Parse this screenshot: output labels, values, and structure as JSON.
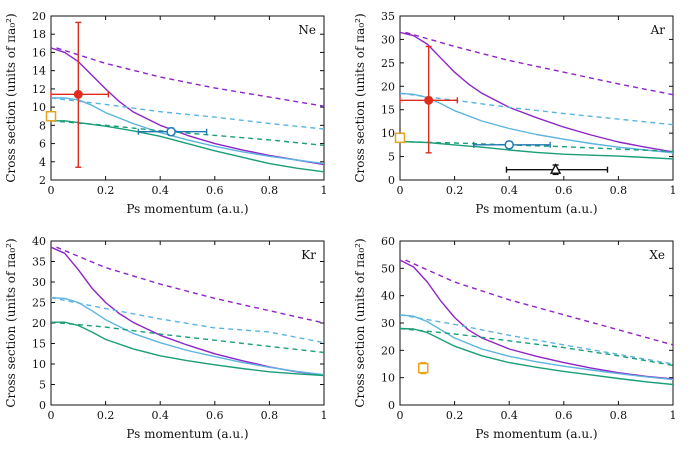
{
  "colors": {
    "purple": "#8e24c8",
    "lightblue": "#5cb4e0",
    "green": "#1a9e78",
    "red": "#e02c1e",
    "blue": "#1f78b4",
    "orange": "#e8a21c",
    "black": "#111111"
  },
  "chart_data": [
    {
      "type": "line",
      "panel_label": "Ne",
      "xlabel": "Ps momentum (a.u.)",
      "ylabel": "Cross section (units of πa₀²)",
      "xlim": [
        0,
        1
      ],
      "ylim": [
        2,
        20
      ],
      "xticks": [
        0,
        0.2,
        0.4,
        0.6,
        0.8,
        1
      ],
      "yticks": [
        2,
        4,
        6,
        8,
        10,
        12,
        14,
        16,
        18,
        20
      ],
      "series": [
        {
          "color": "purple",
          "dash": true,
          "x": [
            0.02,
            0.2,
            0.4,
            0.6,
            0.8,
            1.0
          ],
          "y": [
            16.5,
            14.8,
            13.3,
            12.1,
            11.1,
            10.1
          ]
        },
        {
          "color": "purple",
          "dash": false,
          "x": [
            0.0,
            0.05,
            0.1,
            0.15,
            0.2,
            0.25,
            0.3,
            0.4,
            0.5,
            0.6,
            0.7,
            0.8,
            0.9,
            1.0
          ],
          "y": [
            16.5,
            16.0,
            15.0,
            13.5,
            12.0,
            10.6,
            9.5,
            8.0,
            6.9,
            6.0,
            5.3,
            4.7,
            4.2,
            3.7
          ]
        },
        {
          "color": "lightblue",
          "dash": true,
          "x": [
            0.0,
            0.2,
            0.4,
            0.6,
            0.8,
            1.0
          ],
          "y": [
            11.0,
            10.3,
            9.5,
            8.9,
            8.2,
            7.6
          ]
        },
        {
          "color": "lightblue",
          "dash": false,
          "x": [
            0.0,
            0.05,
            0.1,
            0.15,
            0.2,
            0.3,
            0.4,
            0.5,
            0.6,
            0.7,
            0.8,
            0.9,
            1.0
          ],
          "y": [
            11.0,
            11.0,
            10.8,
            10.2,
            9.4,
            8.2,
            7.2,
            6.4,
            5.7,
            5.1,
            4.6,
            4.2,
            3.8
          ]
        },
        {
          "color": "green",
          "dash": true,
          "x": [
            0.0,
            0.2,
            0.4,
            0.6,
            0.8,
            1.0
          ],
          "y": [
            8.5,
            8.0,
            7.4,
            6.9,
            6.4,
            5.8
          ]
        },
        {
          "color": "green",
          "dash": false,
          "x": [
            0.0,
            0.05,
            0.1,
            0.2,
            0.3,
            0.4,
            0.5,
            0.6,
            0.7,
            0.8,
            0.9,
            1.0
          ],
          "y": [
            8.5,
            8.5,
            8.3,
            7.9,
            7.4,
            6.8,
            6.0,
            5.2,
            4.5,
            3.8,
            3.3,
            2.9
          ]
        }
      ],
      "points": [
        {
          "color": "red",
          "marker": "dot",
          "x": 0.1,
          "y": 11.4,
          "xerr": [
            0.0,
            0.21
          ],
          "yerr": [
            3.4,
            19.3
          ]
        },
        {
          "color": "blue",
          "marker": "circle",
          "x": 0.44,
          "y": 7.3,
          "xerr": [
            0.32,
            0.57
          ],
          "yerr": [
            6.9,
            7.7
          ]
        },
        {
          "color": "orange",
          "marker": "square",
          "x": 0.0,
          "y": 9.0
        }
      ]
    },
    {
      "type": "line",
      "panel_label": "Ar",
      "xlabel": "Ps momentum (a.u.)",
      "ylabel": "Cross section (units of πa₀²)",
      "xlim": [
        0,
        1
      ],
      "ylim": [
        0,
        35
      ],
      "xticks": [
        0,
        0.2,
        0.4,
        0.6,
        0.8,
        1
      ],
      "yticks": [
        0,
        5,
        10,
        15,
        20,
        25,
        30,
        35
      ],
      "series": [
        {
          "color": "purple",
          "dash": true,
          "x": [
            0.02,
            0.2,
            0.4,
            0.6,
            0.8,
            1.0
          ],
          "y": [
            31.5,
            28.5,
            25.5,
            23.0,
            20.5,
            18.2
          ]
        },
        {
          "color": "purple",
          "dash": false,
          "x": [
            0.0,
            0.05,
            0.1,
            0.15,
            0.2,
            0.25,
            0.3,
            0.4,
            0.5,
            0.6,
            0.7,
            0.8,
            0.9,
            1.0
          ],
          "y": [
            31.5,
            30.8,
            29.0,
            26.0,
            23.0,
            20.5,
            18.5,
            15.5,
            13.3,
            11.3,
            9.6,
            8.1,
            7.0,
            6.0
          ]
        },
        {
          "color": "lightblue",
          "dash": true,
          "x": [
            0.0,
            0.2,
            0.4,
            0.6,
            0.8,
            1.0
          ],
          "y": [
            18.5,
            17.0,
            15.5,
            14.2,
            13.0,
            11.8
          ]
        },
        {
          "color": "lightblue",
          "dash": false,
          "x": [
            0.0,
            0.05,
            0.1,
            0.15,
            0.2,
            0.3,
            0.4,
            0.5,
            0.6,
            0.7,
            0.8,
            0.9,
            1.0
          ],
          "y": [
            18.5,
            18.3,
            17.6,
            16.3,
            14.8,
            12.6,
            11.0,
            9.7,
            8.7,
            7.8,
            7.0,
            6.4,
            5.8
          ]
        },
        {
          "color": "green",
          "dash": true,
          "x": [
            0.0,
            0.2,
            0.4,
            0.6,
            0.8,
            1.0
          ],
          "y": [
            8.2,
            7.9,
            7.5,
            7.1,
            6.6,
            6.1
          ]
        },
        {
          "color": "green",
          "dash": false,
          "x": [
            0.0,
            0.1,
            0.2,
            0.3,
            0.4,
            0.5,
            0.6,
            0.7,
            0.8,
            0.9,
            1.0
          ],
          "y": [
            8.2,
            8.0,
            7.5,
            7.0,
            6.4,
            5.9,
            5.5,
            5.3,
            5.1,
            4.8,
            4.5
          ]
        }
      ],
      "points": [
        {
          "color": "red",
          "marker": "dot",
          "x": 0.105,
          "y": 17.0,
          "xerr": [
            0.0,
            0.21
          ],
          "yerr": [
            5.8,
            28.5
          ]
        },
        {
          "color": "blue",
          "marker": "circle",
          "x": 0.4,
          "y": 7.5,
          "xerr": [
            0.27,
            0.55
          ],
          "yerr": [
            6.8,
            8.2
          ]
        },
        {
          "color": "black",
          "marker": "triangle",
          "x": 0.57,
          "y": 2.2,
          "xerr": [
            0.39,
            0.76
          ],
          "yerr": [
            1.2,
            3.2
          ]
        },
        {
          "color": "orange",
          "marker": "square",
          "x": 0.0,
          "y": 9.0
        }
      ]
    },
    {
      "type": "line",
      "panel_label": "Kr",
      "xlabel": "Ps momentum (a.u.)",
      "ylabel": "Cross section (units of πa₀²)",
      "xlim": [
        0,
        1
      ],
      "ylim": [
        0,
        40
      ],
      "xticks": [
        0,
        0.2,
        0.4,
        0.6,
        0.8,
        1
      ],
      "yticks": [
        0,
        5,
        10,
        15,
        20,
        25,
        30,
        35,
        40
      ],
      "series": [
        {
          "color": "purple",
          "dash": true,
          "x": [
            0.02,
            0.2,
            0.4,
            0.6,
            0.8,
            1.0
          ],
          "y": [
            38.5,
            33.5,
            29.5,
            26.0,
            23.0,
            20.0
          ]
        },
        {
          "color": "purple",
          "dash": false,
          "x": [
            0.0,
            0.05,
            0.1,
            0.15,
            0.2,
            0.25,
            0.3,
            0.4,
            0.5,
            0.6,
            0.7,
            0.8,
            0.9,
            1.0
          ],
          "y": [
            38.5,
            37.0,
            33.0,
            28.5,
            25.0,
            22.3,
            20.2,
            17.0,
            14.6,
            12.5,
            10.8,
            9.3,
            8.1,
            7.3
          ]
        },
        {
          "color": "lightblue",
          "dash": true,
          "x": [
            0.0,
            0.2,
            0.4,
            0.6,
            0.8,
            1.0
          ],
          "y": [
            26.2,
            23.5,
            21.0,
            18.8,
            17.8,
            15.2
          ]
        },
        {
          "color": "lightblue",
          "dash": false,
          "x": [
            0.0,
            0.05,
            0.1,
            0.15,
            0.2,
            0.3,
            0.4,
            0.5,
            0.6,
            0.7,
            0.8,
            0.9,
            1.0
          ],
          "y": [
            26.2,
            26.0,
            25.0,
            23.0,
            20.8,
            17.5,
            15.2,
            13.3,
            11.8,
            10.4,
            9.2,
            8.2,
            7.4
          ]
        },
        {
          "color": "green",
          "dash": true,
          "x": [
            0.0,
            0.2,
            0.4,
            0.6,
            0.8,
            1.0
          ],
          "y": [
            20.2,
            19.0,
            17.3,
            15.8,
            14.3,
            12.8
          ]
        },
        {
          "color": "green",
          "dash": false,
          "x": [
            0.0,
            0.05,
            0.1,
            0.15,
            0.2,
            0.3,
            0.4,
            0.5,
            0.6,
            0.7,
            0.8,
            0.9,
            1.0
          ],
          "y": [
            20.2,
            20.2,
            19.4,
            17.8,
            16.0,
            13.7,
            12.0,
            10.8,
            9.8,
            8.9,
            8.1,
            7.6,
            7.2
          ]
        }
      ],
      "points": []
    },
    {
      "type": "line",
      "panel_label": "Xe",
      "xlabel": "Ps momentum (a.u.)",
      "ylabel": "Cross section (units of πa₀²)",
      "xlim": [
        0,
        1
      ],
      "ylim": [
        0,
        60
      ],
      "xticks": [
        0,
        0.2,
        0.4,
        0.6,
        0.8,
        1
      ],
      "yticks": [
        0,
        10,
        20,
        30,
        40,
        50,
        60
      ],
      "series": [
        {
          "color": "purple",
          "dash": true,
          "x": [
            0.02,
            0.2,
            0.4,
            0.6,
            0.8,
            1.0
          ],
          "y": [
            53.0,
            45.0,
            38.5,
            33.0,
            27.5,
            22.0
          ]
        },
        {
          "color": "purple",
          "dash": false,
          "x": [
            0.0,
            0.05,
            0.1,
            0.15,
            0.2,
            0.25,
            0.3,
            0.4,
            0.5,
            0.6,
            0.7,
            0.8,
            0.9,
            1.0
          ],
          "y": [
            53.0,
            50.5,
            45.0,
            38.0,
            32.0,
            27.5,
            24.5,
            20.5,
            17.8,
            15.5,
            13.5,
            11.8,
            10.5,
            9.5
          ]
        },
        {
          "color": "lightblue",
          "dash": true,
          "x": [
            0.0,
            0.2,
            0.4,
            0.6,
            0.8,
            1.0
          ],
          "y": [
            33.0,
            29.5,
            25.5,
            22.0,
            18.5,
            15.0
          ]
        },
        {
          "color": "lightblue",
          "dash": false,
          "x": [
            0.0,
            0.05,
            0.1,
            0.15,
            0.2,
            0.3,
            0.4,
            0.5,
            0.6,
            0.7,
            0.8,
            0.9,
            1.0
          ],
          "y": [
            33.0,
            32.5,
            30.5,
            27.5,
            24.5,
            20.5,
            17.8,
            15.8,
            14.2,
            12.8,
            11.5,
            10.3,
            9.3
          ]
        },
        {
          "color": "green",
          "dash": true,
          "x": [
            0.0,
            0.2,
            0.4,
            0.6,
            0.8,
            1.0
          ],
          "y": [
            28.0,
            26.0,
            23.5,
            21.0,
            18.0,
            14.5
          ]
        },
        {
          "color": "green",
          "dash": false,
          "x": [
            0.0,
            0.05,
            0.1,
            0.15,
            0.2,
            0.3,
            0.4,
            0.5,
            0.6,
            0.7,
            0.8,
            0.9,
            1.0
          ],
          "y": [
            28.0,
            27.8,
            26.5,
            24.0,
            21.5,
            18.0,
            15.5,
            13.8,
            12.3,
            11.0,
            9.7,
            8.5,
            7.5
          ]
        }
      ],
      "points": [
        {
          "color": "orange",
          "marker": "square",
          "x": 0.085,
          "y": 13.5,
          "xerr": [
            0.07,
            0.1
          ],
          "yerr": [
            11.5,
            15.5
          ]
        }
      ]
    }
  ]
}
